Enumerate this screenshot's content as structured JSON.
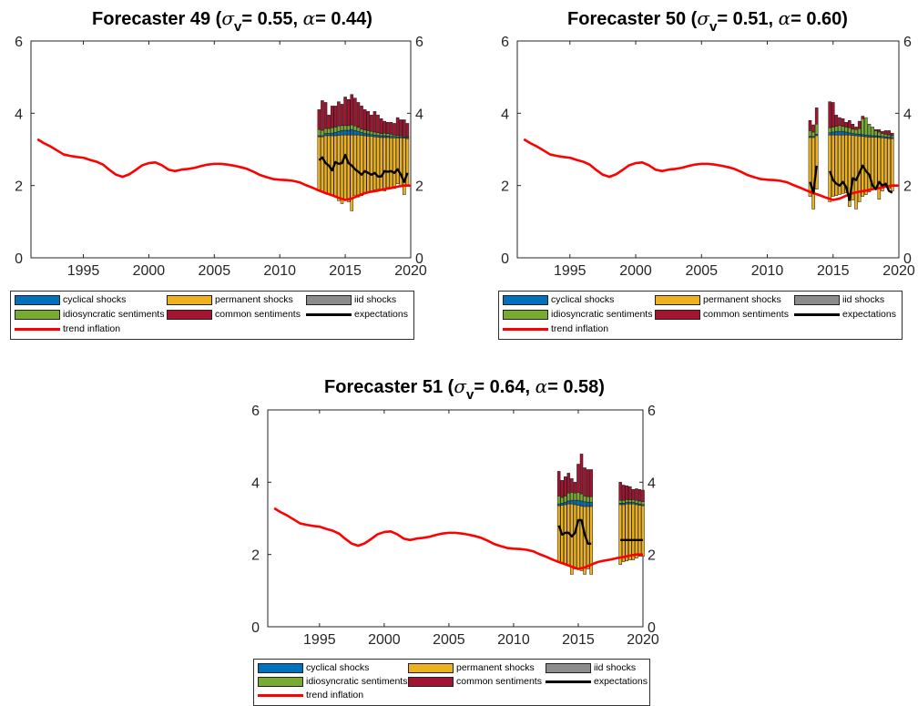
{
  "colors": {
    "cyclical": "#0072BD",
    "permanent": "#EDB120",
    "iid": "#8C8C8C",
    "idiosyncratic": "#77AC30",
    "common": "#A2142F",
    "expectations": "#000000",
    "trend": "#FF0000"
  },
  "legend": {
    "cyclical": "cyclical shocks",
    "permanent": "permanent shocks",
    "iid": "iid shocks",
    "idiosyncratic": "idiosyncratic sentiments",
    "common": "common sentiments",
    "expectations": "expectations",
    "trend": "trend inflation"
  },
  "chart_data": [
    {
      "type": "bar",
      "title": {
        "prefix": "Forecaster 49 (",
        "sigma": "σ",
        "sub": "v",
        "middle": "= 0.55, ",
        "alpha": "α",
        "suffix": "= 0.44)"
      },
      "xlim": [
        1991,
        2020
      ],
      "ylim": [
        0,
        6
      ],
      "x_ticks": [
        1995,
        2000,
        2005,
        2010,
        2015,
        2020
      ],
      "y_ticks": [
        0,
        2,
        4,
        6
      ],
      "y_right_ticks": [
        0,
        2,
        4,
        6
      ],
      "legend_position": "bottom",
      "trend_inflation": {
        "x": [
          1991.5,
          1992,
          1992.5,
          1993,
          1993.5,
          1994,
          1994.5,
          1995,
          1995.5,
          1996,
          1996.5,
          1997,
          1997.5,
          1998,
          1998.5,
          1999,
          1999.5,
          2000,
          2000.5,
          2001,
          2001.5,
          2002,
          2002.5,
          2003,
          2003.5,
          2004,
          2004.5,
          2005,
          2005.5,
          2006,
          2006.5,
          2007,
          2007.5,
          2008,
          2008.5,
          2009,
          2009.5,
          2010,
          2010.5,
          2011,
          2011.5,
          2012,
          2012.5,
          2013,
          2013.5,
          2014,
          2014.5,
          2015,
          2015.5,
          2016,
          2016.5,
          2017,
          2017.5,
          2018,
          2018.5,
          2019,
          2019.5,
          2020
        ],
        "y": [
          3.28,
          3.17,
          3.08,
          2.97,
          2.86,
          2.82,
          2.79,
          2.77,
          2.71,
          2.66,
          2.58,
          2.43,
          2.3,
          2.24,
          2.31,
          2.43,
          2.56,
          2.62,
          2.64,
          2.56,
          2.44,
          2.4,
          2.44,
          2.46,
          2.49,
          2.54,
          2.58,
          2.6,
          2.6,
          2.58,
          2.55,
          2.51,
          2.46,
          2.38,
          2.29,
          2.23,
          2.18,
          2.16,
          2.15,
          2.13,
          2.09,
          2.01,
          1.94,
          1.86,
          1.79,
          1.73,
          1.66,
          1.6,
          1.64,
          1.72,
          1.79,
          1.83,
          1.86,
          1.9,
          1.93,
          1.97,
          2.0,
          2.0
        ]
      },
      "decomposition": {
        "start": 2013.0,
        "step": 0.25,
        "segments": [
          [
            0,
            28
          ]
        ],
        "permanent_top": [
          3.35,
          3.35,
          3.38,
          3.38,
          3.38,
          3.38,
          3.39,
          3.4,
          3.4,
          3.4,
          3.4,
          3.4,
          3.4,
          3.39,
          3.38,
          3.37,
          3.36,
          3.35,
          3.34,
          3.33,
          3.33,
          3.33,
          3.32,
          3.32,
          3.32,
          3.32,
          3.31,
          3.3
        ],
        "cyclical_top": [
          3.38,
          3.38,
          3.44,
          3.44,
          3.45,
          3.47,
          3.5,
          3.52,
          3.53,
          3.53,
          3.55,
          3.52,
          3.5,
          3.47,
          3.44,
          3.43,
          3.41,
          3.4,
          3.39,
          3.38,
          3.38,
          3.37,
          3.36,
          3.36,
          3.35,
          3.35,
          3.34,
          3.33
        ],
        "idio_top": [
          3.55,
          3.53,
          3.58,
          3.58,
          3.6,
          3.62,
          3.65,
          3.66,
          3.66,
          3.66,
          3.68,
          3.65,
          3.61,
          3.56,
          3.54,
          3.52,
          3.5,
          3.48,
          3.46,
          3.44,
          3.45,
          3.44,
          3.42,
          3.4,
          3.39,
          3.38,
          3.37,
          3.35
        ],
        "common_top": [
          4.1,
          4.35,
          4.3,
          3.95,
          4.2,
          4.2,
          4.32,
          4.25,
          4.45,
          4.38,
          4.52,
          4.42,
          4.3,
          4.2,
          4.1,
          4.05,
          3.95,
          4.05,
          3.95,
          3.85,
          3.78,
          3.75,
          3.75,
          3.72,
          3.88,
          3.82,
          3.82,
          3.72
        ],
        "permanent_bottom": [
          1.85,
          1.82,
          1.78,
          1.75,
          1.72,
          1.68,
          1.58,
          1.5,
          1.62,
          1.55,
          1.3,
          1.72,
          1.68,
          1.72,
          1.78,
          1.82,
          1.85,
          1.88,
          1.9,
          1.9,
          1.85,
          1.95,
          1.92,
          1.92,
          2.05,
          1.96,
          1.75,
          2.0
        ],
        "expectations": [
          2.7,
          2.78,
          2.62,
          2.55,
          2.42,
          2.65,
          2.6,
          2.62,
          2.85,
          2.62,
          2.55,
          2.45,
          2.38,
          2.3,
          2.4,
          2.35,
          2.3,
          2.35,
          2.25,
          2.25,
          2.4,
          2.38,
          2.4,
          2.35,
          2.45,
          2.3,
          2.1,
          2.35
        ]
      }
    },
    {
      "type": "bar",
      "title": {
        "prefix": "Forecaster 50 (",
        "sigma": "σ",
        "sub": "v",
        "middle": "= 0.51, ",
        "alpha": "α",
        "suffix": "= 0.60)"
      },
      "xlim": [
        1991,
        2020
      ],
      "ylim": [
        0,
        6
      ],
      "x_ticks": [
        1995,
        2000,
        2005,
        2010,
        2015,
        2020
      ],
      "y_ticks": [
        0,
        2,
        4,
        6
      ],
      "y_right_ticks": [
        0,
        2,
        4,
        6
      ],
      "legend_position": "bottom",
      "trend_inflation": {
        "x": [
          1991.5,
          1992,
          1992.5,
          1993,
          1993.5,
          1994,
          1994.5,
          1995,
          1995.5,
          1996,
          1996.5,
          1997,
          1997.5,
          1998,
          1998.5,
          1999,
          1999.5,
          2000,
          2000.5,
          2001,
          2001.5,
          2002,
          2002.5,
          2003,
          2003.5,
          2004,
          2004.5,
          2005,
          2005.5,
          2006,
          2006.5,
          2007,
          2007.5,
          2008,
          2008.5,
          2009,
          2009.5,
          2010,
          2010.5,
          2011,
          2011.5,
          2012,
          2012.5,
          2013,
          2013.5,
          2014,
          2014.5,
          2015,
          2015.5,
          2016,
          2016.5,
          2017,
          2017.5,
          2018,
          2018.5,
          2019,
          2019.5,
          2020
        ],
        "y": [
          3.28,
          3.17,
          3.08,
          2.97,
          2.86,
          2.82,
          2.79,
          2.77,
          2.71,
          2.66,
          2.58,
          2.43,
          2.3,
          2.24,
          2.31,
          2.43,
          2.56,
          2.62,
          2.64,
          2.56,
          2.44,
          2.4,
          2.44,
          2.46,
          2.49,
          2.54,
          2.58,
          2.6,
          2.6,
          2.58,
          2.55,
          2.51,
          2.46,
          2.38,
          2.29,
          2.23,
          2.18,
          2.16,
          2.15,
          2.13,
          2.09,
          2.01,
          1.94,
          1.86,
          1.79,
          1.73,
          1.66,
          1.6,
          1.64,
          1.72,
          1.79,
          1.83,
          1.86,
          1.9,
          1.93,
          1.97,
          2.0,
          2.0
        ]
      },
      "decomposition": {
        "start": 2013.25,
        "step": 0.25,
        "segments": [
          [
            0,
            3
          ],
          [
            6,
            26
          ]
        ],
        "permanent_top": [
          3.33,
          3.33,
          3.38,
          0,
          0,
          0,
          3.4,
          3.4,
          3.4,
          3.4,
          3.4,
          3.4,
          3.4,
          3.39,
          3.38,
          3.37,
          3.36,
          3.35,
          3.34,
          3.34,
          3.34,
          3.33,
          3.32,
          3.31,
          3.3,
          3.3
        ],
        "cyclical_top": [
          3.36,
          3.36,
          3.42,
          0,
          0,
          0,
          3.46,
          3.48,
          3.5,
          3.5,
          3.5,
          3.48,
          3.46,
          3.44,
          3.43,
          3.42,
          3.41,
          3.4,
          3.39,
          3.38,
          3.38,
          3.37,
          3.36,
          3.35,
          3.34,
          3.33
        ],
        "idio_top": [
          3.52,
          3.48,
          3.7,
          0,
          0,
          0,
          3.6,
          3.62,
          3.64,
          3.66,
          3.64,
          3.62,
          3.6,
          3.56,
          3.55,
          3.58,
          3.85,
          3.88,
          3.7,
          3.62,
          3.52,
          3.48,
          3.44,
          3.42,
          3.4,
          3.38
        ],
        "common_top": [
          3.8,
          3.68,
          4.15,
          0,
          0,
          0,
          4.32,
          4.3,
          3.95,
          3.88,
          3.85,
          3.75,
          3.8,
          3.7,
          3.62,
          3.78,
          3.92,
          3.8,
          3.62,
          3.6,
          3.55,
          3.55,
          3.5,
          3.52,
          3.52,
          3.45
        ],
        "permanent_bottom": [
          1.7,
          1.35,
          1.9,
          0,
          0,
          0,
          1.55,
          1.7,
          1.72,
          1.75,
          1.78,
          1.8,
          1.42,
          1.6,
          1.35,
          1.55,
          1.7,
          1.75,
          1.82,
          1.9,
          1.95,
          1.62,
          1.85,
          1.95,
          1.92,
          1.85
        ],
        "expectations": [
          2.1,
          1.8,
          2.55,
          0,
          0,
          0,
          2.4,
          2.15,
          2.05,
          2.0,
          2.1,
          1.95,
          1.6,
          2.2,
          2.15,
          2.35,
          2.55,
          2.4,
          2.3,
          2.0,
          1.9,
          2.1,
          2.0,
          2.05,
          1.85,
          1.8
        ]
      }
    },
    {
      "type": "bar",
      "title": {
        "prefix": "Forecaster 51 (",
        "sigma": "σ",
        "sub": "v",
        "middle": "= 0.64, ",
        "alpha": "α",
        "suffix": "= 0.58)"
      },
      "xlim": [
        1991,
        2020
      ],
      "ylim": [
        0,
        6
      ],
      "x_ticks": [
        1995,
        2000,
        2005,
        2010,
        2015,
        2020
      ],
      "y_ticks": [
        0,
        2,
        4,
        6
      ],
      "y_right_ticks": [
        0,
        2,
        4,
        6
      ],
      "legend_position": "bottom",
      "trend_inflation": {
        "x": [
          1991.5,
          1992,
          1992.5,
          1993,
          1993.5,
          1994,
          1994.5,
          1995,
          1995.5,
          1996,
          1996.5,
          1997,
          1997.5,
          1998,
          1998.5,
          1999,
          1999.5,
          2000,
          2000.5,
          2001,
          2001.5,
          2002,
          2002.5,
          2003,
          2003.5,
          2004,
          2004.5,
          2005,
          2005.5,
          2006,
          2006.5,
          2007,
          2007.5,
          2008,
          2008.5,
          2009,
          2009.5,
          2010,
          2010.5,
          2011,
          2011.5,
          2012,
          2012.5,
          2013,
          2013.5,
          2014,
          2014.5,
          2015,
          2015.5,
          2016,
          2016.5,
          2017,
          2017.5,
          2018,
          2018.5,
          2019,
          2019.5,
          2020
        ],
        "y": [
          3.28,
          3.17,
          3.08,
          2.97,
          2.86,
          2.82,
          2.79,
          2.77,
          2.71,
          2.66,
          2.58,
          2.43,
          2.3,
          2.24,
          2.31,
          2.43,
          2.56,
          2.62,
          2.64,
          2.56,
          2.44,
          2.4,
          2.44,
          2.46,
          2.49,
          2.54,
          2.58,
          2.6,
          2.6,
          2.58,
          2.55,
          2.51,
          2.46,
          2.38,
          2.29,
          2.23,
          2.18,
          2.16,
          2.15,
          2.13,
          2.09,
          2.01,
          1.94,
          1.86,
          1.79,
          1.73,
          1.66,
          1.6,
          1.64,
          1.72,
          1.79,
          1.83,
          1.86,
          1.9,
          1.93,
          1.97,
          2.0,
          2.0
        ]
      },
      "decomposition": {
        "start": 2013.5,
        "step": 0.25,
        "segments": [
          [
            0,
            11
          ],
          [
            19,
            27
          ]
        ],
        "permanent_top": [
          3.35,
          3.36,
          3.38,
          3.4,
          3.4,
          3.38,
          3.36,
          3.34,
          3.33,
          3.33,
          3.33,
          0,
          0,
          0,
          0,
          0,
          0,
          0,
          0,
          3.38,
          3.38,
          3.4,
          3.4,
          3.4,
          3.38,
          3.36,
          3.35
        ],
        "cyclical_top": [
          3.4,
          3.42,
          3.45,
          3.48,
          3.5,
          3.5,
          3.5,
          3.48,
          3.46,
          3.45,
          3.44,
          0,
          0,
          0,
          0,
          0,
          0,
          0,
          0,
          3.42,
          3.42,
          3.44,
          3.44,
          3.44,
          3.42,
          3.4,
          3.38
        ],
        "idio_top": [
          3.62,
          3.58,
          3.62,
          3.7,
          3.72,
          3.7,
          3.72,
          3.68,
          3.62,
          3.6,
          3.6,
          0,
          0,
          0,
          0,
          0,
          0,
          0,
          0,
          3.5,
          3.5,
          3.52,
          3.52,
          3.52,
          3.5,
          3.48,
          3.46
        ],
        "common_top": [
          4.3,
          4.05,
          4.15,
          4.25,
          4.1,
          4.0,
          4.5,
          4.78,
          4.4,
          4.35,
          4.35,
          0,
          0,
          0,
          0,
          0,
          0,
          0,
          0,
          4.0,
          3.92,
          3.9,
          3.88,
          3.8,
          3.82,
          3.8,
          3.78
        ],
        "permanent_bottom": [
          1.8,
          1.78,
          1.72,
          1.7,
          1.45,
          1.6,
          1.58,
          1.55,
          1.45,
          1.6,
          1.45,
          0,
          0,
          0,
          0,
          0,
          0,
          0,
          0,
          1.72,
          1.8,
          1.82,
          1.85,
          1.85,
          1.9,
          1.95,
          1.95
        ],
        "expectations": [
          2.8,
          2.55,
          2.6,
          2.6,
          2.5,
          2.6,
          2.95,
          2.95,
          2.55,
          2.3,
          2.3,
          0,
          0,
          0,
          0,
          0,
          0,
          0,
          0,
          2.4,
          2.4,
          2.4,
          2.4,
          2.4,
          2.4,
          2.4,
          2.4
        ]
      }
    }
  ]
}
